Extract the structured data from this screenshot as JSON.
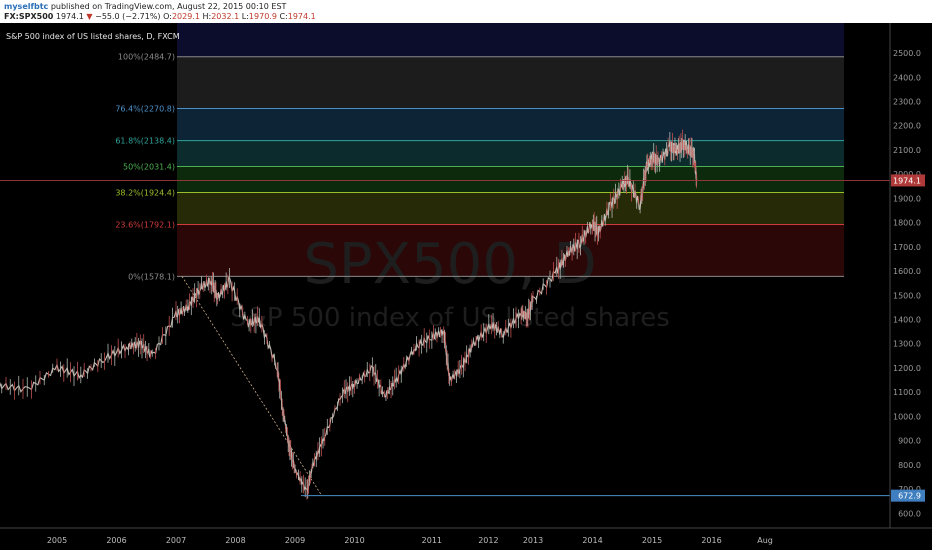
{
  "header": {
    "author": "myselfbtc",
    "published": "published on TradingView.com, August 22, 2015 00:10 EST",
    "symbol": "FX:SPX500",
    "last": "1974.1",
    "change": "−55.0 (−2.71%)",
    "o_label": "O:",
    "o_value": "2029.1",
    "h_label": "H:",
    "h_value": "2032.1",
    "l_label": "L:",
    "l_value": "1970.9",
    "c_label": "C:",
    "c_value": "1974.1"
  },
  "chart_data": {
    "type": "line",
    "title": "S&P 500 index of US listed shares, D, FXCM",
    "watermark_symbol": "SPX500, D",
    "watermark_desc": "S&P 500 index of US listed shares",
    "x_ticks": [
      "2005",
      "2006",
      "2007",
      "2008",
      "2009",
      "2010",
      "2011",
      "2012",
      "2013",
      "2014",
      "2015",
      "2016",
      "Aug"
    ],
    "y_ticks": [
      600,
      700,
      800,
      900,
      1000,
      1100,
      1200,
      1300,
      1400,
      1500,
      1600,
      1700,
      1800,
      1900,
      2000,
      2100,
      2200,
      2300,
      2400,
      2500
    ],
    "ylim": [
      560,
      2560
    ],
    "last_price_label": "1974.1",
    "low_price_label": "672.9",
    "fib_levels": [
      {
        "label": "100%(2484.7)",
        "value": 2484.7,
        "color": "#8a8a8a"
      },
      {
        "label": "76.4%(2270.8)",
        "value": 2270.8,
        "color": "#4a90c8"
      },
      {
        "label": "61.8%(2138.4)",
        "value": 2138.4,
        "color": "#2fa39a"
      },
      {
        "label": "50%(2031.4)",
        "value": 2031.4,
        "color": "#4caf50"
      },
      {
        "label": "38.2%(1924.4)",
        "value": 1924.4,
        "color": "#9bbf2a"
      },
      {
        "label": "23.6%(1792.1)",
        "value": 1792.1,
        "color": "#d03b3b"
      },
      {
        "label": "0%(1578.1)",
        "value": 1578.1,
        "color": "#8a8a8a"
      }
    ],
    "fib_zone_colors": [
      "#0c0c2c",
      "#1c1c1c",
      "#0c2436",
      "#0b2b2c",
      "#0d2a0d",
      "#262a07",
      "#2c0707"
    ],
    "series": [
      {
        "x": [
          2004.0,
          2004.5,
          2005.0,
          2005.4,
          2005.8,
          2006.2,
          2006.4,
          2006.6,
          2007.0,
          2007.2,
          2007.4,
          2007.6,
          2007.7,
          2007.9,
          2008.2,
          2008.4,
          2008.7,
          2008.8,
          2008.9,
          2009.0,
          2009.2,
          2009.3,
          2009.5,
          2009.8,
          2010.0,
          2010.3,
          2010.5,
          2010.7,
          2011.0,
          2011.3,
          2011.5,
          2011.6,
          2011.8,
          2012.0,
          2012.3,
          2012.5,
          2012.8,
          2012.9,
          2013.0,
          2013.4,
          2013.6,
          2013.8,
          2014.0,
          2014.1,
          2014.3,
          2014.5,
          2014.6,
          2014.8,
          2014.9,
          2015.0,
          2015.1,
          2015.3,
          2015.4,
          2015.5,
          2015.6,
          2015.7,
          2015.75
        ],
        "y": [
          1130,
          1110,
          1200,
          1170,
          1240,
          1290,
          1300,
          1250,
          1420,
          1450,
          1530,
          1560,
          1490,
          1560,
          1380,
          1400,
          1200,
          1020,
          880,
          780,
          690,
          800,
          920,
          1100,
          1130,
          1200,
          1080,
          1150,
          1280,
          1330,
          1350,
          1150,
          1200,
          1300,
          1380,
          1340,
          1430,
          1410,
          1480,
          1600,
          1680,
          1720,
          1800,
          1760,
          1870,
          1950,
          1980,
          1870,
          2030,
          2070,
          2050,
          2110,
          2100,
          2120,
          2110,
          2090,
          1974.1
        ]
      }
    ]
  }
}
